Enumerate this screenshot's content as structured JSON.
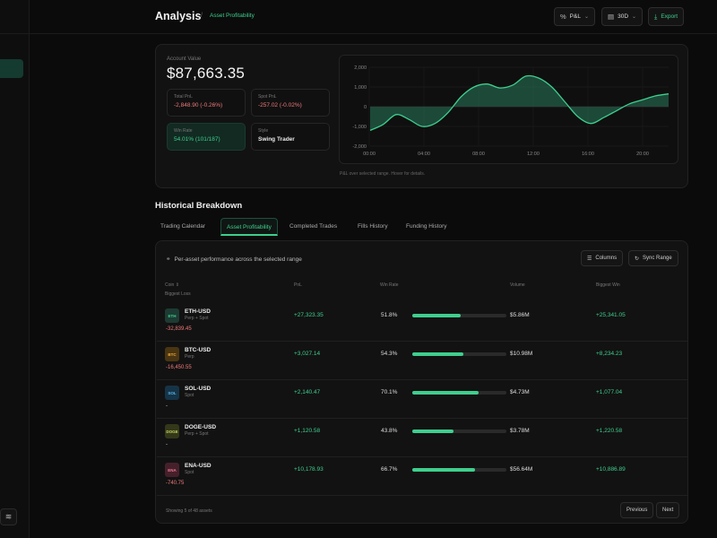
{
  "header": {
    "title": "Analysis",
    "breadcrumb_sep": "/",
    "breadcrumb": "Asset Profitability",
    "metric_select": "P&L",
    "period_select": "30D",
    "export_label": "Export"
  },
  "overview": {
    "account_label": "Account Value",
    "account_value": "$87,663.35",
    "stats": [
      {
        "label": "Total PnL",
        "value": "-2,848.90 (-0.26%)"
      },
      {
        "label": "Spot PnL",
        "value": "-257.02 (-0.02%)"
      },
      {
        "label": "Win Rate",
        "value": "54.01% (101/187)"
      },
      {
        "label": "Style",
        "value": "Swing Trader"
      }
    ],
    "chart_caption": "P&L over selected range. Hover for details."
  },
  "chart_data": {
    "type": "area",
    "title": "",
    "xlabel": "",
    "ylabel": "",
    "x_ticks": [
      "00:00",
      "04:00",
      "08:00",
      "12:00",
      "16:00",
      "20:00"
    ],
    "y_ticks": [
      "2,000",
      "1,000",
      "0",
      "-1,000",
      "-2,000"
    ],
    "ylim": [
      -2000,
      2000
    ],
    "grid": true,
    "x": [
      0,
      1,
      2,
      3,
      4,
      5,
      6,
      7,
      8,
      9,
      10,
      11,
      12,
      13,
      14,
      15,
      16,
      17,
      18,
      19,
      20,
      21,
      22,
      23
    ],
    "values": [
      -1200,
      -900,
      -400,
      -650,
      -1000,
      -850,
      -300,
      500,
      1000,
      1150,
      950,
      1100,
      1550,
      1450,
      1000,
      250,
      -500,
      -850,
      -550,
      -200,
      150,
      350,
      550,
      650
    ],
    "colors": {
      "line": "#3ecf8e",
      "fill": "#2a7a5c"
    }
  },
  "historical": {
    "title": "Historical Breakdown",
    "tabs": [
      "Trading Calendar",
      "Asset Profitability",
      "Completed Trades",
      "Fills History",
      "Funding History"
    ],
    "active_tab": 1,
    "caption": "Per-asset performance across the selected range",
    "columns_btn": "Columns",
    "sync_btn": "Sync Range",
    "headers": {
      "coin": "Coin",
      "coin_sort": "⇕",
      "pnl": "PnL",
      "win_rate": "Win Rate",
      "volume": "Volume",
      "biggest_win": "Biggest Win",
      "biggest_loss": "Biggest Loss"
    },
    "rows": [
      {
        "badge": "ETH",
        "symbol": "ETH-USD",
        "market": "Perp + Spot",
        "pnl": "+27,323.35",
        "win_rate": "51.8%",
        "win_pct": 51.8,
        "volume": "$5.86M",
        "biggest_win": "+25,341.05",
        "biggest_loss": "-32,839.45",
        "badge_bg": "#1d3b33",
        "badge_fg": "#3ecf8e"
      },
      {
        "badge": "BTC",
        "symbol": "BTC-USD",
        "market": "Perp",
        "pnl": "+3,027.14",
        "win_rate": "54.3%",
        "win_pct": 54.3,
        "volume": "$10.98M",
        "biggest_win": "+8,234.23",
        "biggest_loss": "-16,450.55",
        "badge_bg": "#4a3512",
        "badge_fg": "#f0a93b"
      },
      {
        "badge": "SOL",
        "symbol": "SOL-USD",
        "market": "Spot",
        "pnl": "+2,140.47",
        "win_rate": "70.1%",
        "win_pct": 70.1,
        "volume": "$4.73M",
        "biggest_win": "+1,077.04",
        "biggest_loss": "-",
        "badge_bg": "#163447",
        "badge_fg": "#5ab8f0"
      },
      {
        "badge": "DOGE",
        "symbol": "DOGE-USD",
        "market": "Perp + Spot",
        "pnl": "+1,120.58",
        "win_rate": "43.8%",
        "win_pct": 43.8,
        "volume": "$3.78M",
        "biggest_win": "+1,220.58",
        "biggest_loss": "-",
        "badge_bg": "#33381a",
        "badge_fg": "#c9d45a"
      },
      {
        "badge": "ENA",
        "symbol": "ENA-USD",
        "market": "Spot",
        "pnl": "+10,178.93",
        "win_rate": "66.7%",
        "win_pct": 66.7,
        "volume": "$56.64M",
        "biggest_win": "+10,886.89",
        "biggest_loss": "-740.75",
        "badge_bg": "#45202b",
        "badge_fg": "#f07a96"
      }
    ],
    "footer": "Showing 5 of 48 assets",
    "prev_label": "Previous",
    "next_label": "Next"
  },
  "icons": {
    "sidebar_bottom": "layers-icon",
    "metric": "percent-icon",
    "period": "calendar-icon",
    "export": "download-icon",
    "caption": "link-icon",
    "columns": "sliders-icon",
    "sync": "refresh-icon"
  }
}
